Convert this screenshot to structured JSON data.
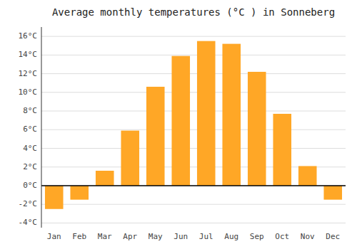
{
  "chart_data": {
    "type": "bar",
    "title": "Average monthly temperatures (°C ) in Sonneberg",
    "categories": [
      "Jan",
      "Feb",
      "Mar",
      "Apr",
      "May",
      "Jun",
      "Jul",
      "Aug",
      "Sep",
      "Oct",
      "Nov",
      "Dec"
    ],
    "values": [
      -2.5,
      -1.5,
      1.6,
      5.9,
      10.6,
      13.9,
      15.5,
      15.2,
      12.2,
      7.7,
      2.1,
      -1.5
    ],
    "color": "#FFA726",
    "ylim": [
      -4.5,
      17.0
    ],
    "yticks": [
      {
        "value": -4,
        "label": "-4°C"
      },
      {
        "value": -2,
        "label": "-2°C"
      },
      {
        "value": 0,
        "label": "0°C"
      },
      {
        "value": 2,
        "label": "2°C"
      },
      {
        "value": 4,
        "label": "4°C"
      },
      {
        "value": 6,
        "label": "6°C"
      },
      {
        "value": 8,
        "label": "8°C"
      },
      {
        "value": 10,
        "label": "10°C"
      },
      {
        "value": 12,
        "label": "12°C"
      },
      {
        "value": 14,
        "label": "14°C"
      },
      {
        "value": 16,
        "label": "16°C"
      }
    ],
    "grid": true
  }
}
